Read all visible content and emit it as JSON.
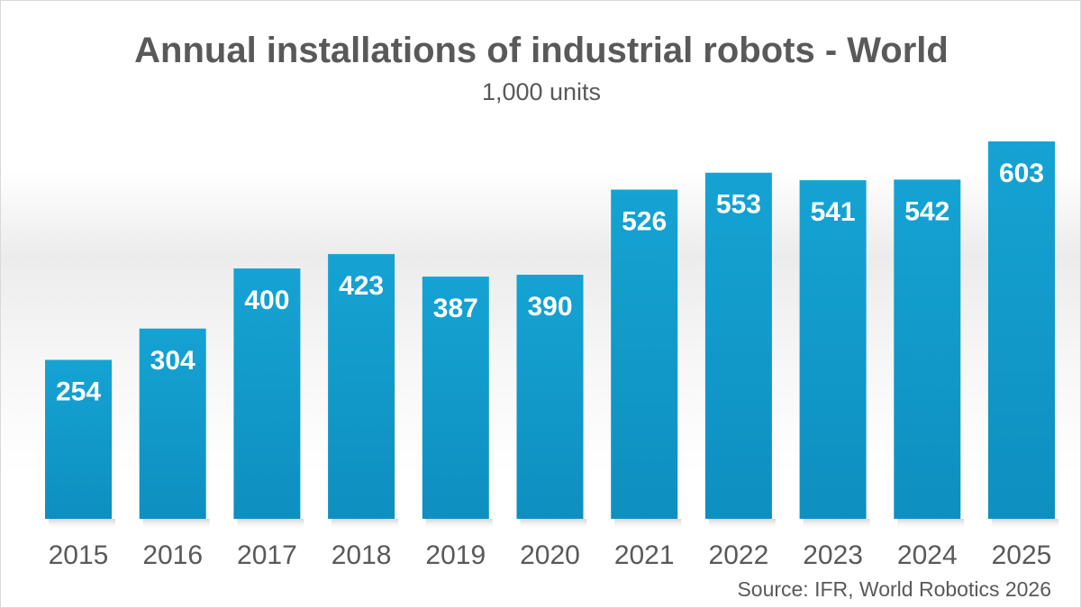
{
  "title": "Annual installations of industrial robots - World",
  "subtitle": "1,000 units",
  "source": "Source: IFR, World Robotics 2026",
  "colors": {
    "bar": "#129ccc",
    "bar_dark": "#0d86b3",
    "text": "#595959"
  },
  "chart_data": {
    "type": "bar",
    "title": "Annual installations of industrial robots - World",
    "subtitle": "1,000 units",
    "xlabel": "",
    "ylabel": "",
    "categories": [
      "2015",
      "2016",
      "2017",
      "2018",
      "2019",
      "2020",
      "2021",
      "2022",
      "2023",
      "2024",
      "2025"
    ],
    "values": [
      254,
      304,
      400,
      423,
      387,
      390,
      526,
      553,
      541,
      542,
      603
    ],
    "ylim": [
      0,
      603
    ],
    "grid": false,
    "legend": "none"
  }
}
